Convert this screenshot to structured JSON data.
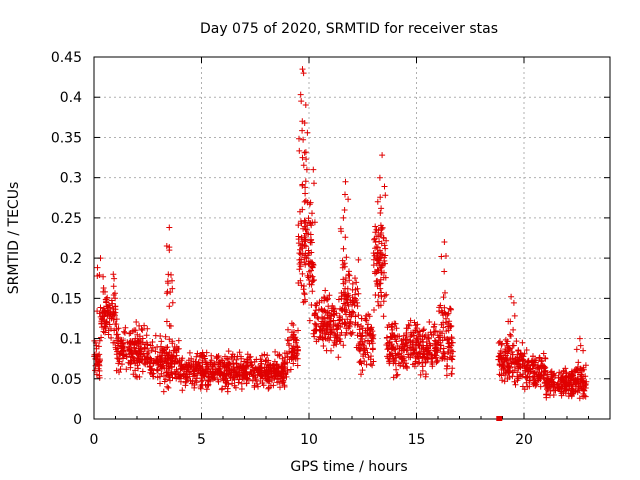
{
  "chart_data": {
    "type": "scatter",
    "title": "Day 075 of 2020, SRMTID for receiver stas",
    "xlabel": "GPS time / hours",
    "ylabel": "SRMTID / TECUs",
    "xlim": [
      0,
      24
    ],
    "ylim": [
      0,
      0.45
    ],
    "x_ticks": [
      "0",
      "5",
      "10",
      "15",
      "20"
    ],
    "y_ticks": [
      "0",
      "0.05",
      "0.1",
      "0.15",
      "0.2",
      "0.25",
      "0.3",
      "0.35",
      "0.4",
      "0.45"
    ],
    "grid": true,
    "marker": "plus",
    "color": "#e00000",
    "gap_marker": {
      "x": 18.85,
      "y": 0.0
    },
    "series": [
      {
        "name": "SRMTID",
        "segments": [
          {
            "x0": 0.0,
            "x1": 0.3,
            "base": 0.075,
            "spread": 0.03
          },
          {
            "x0": 0.3,
            "x1": 1.0,
            "base": 0.13,
            "spread": 0.05
          },
          {
            "x0": 1.0,
            "x1": 2.5,
            "base": 0.085,
            "spread": 0.04
          },
          {
            "x0": 2.5,
            "x1": 4.0,
            "base": 0.07,
            "spread": 0.04
          },
          {
            "x0": 4.0,
            "x1": 9.0,
            "base": 0.06,
            "spread": 0.03
          },
          {
            "x0": 9.0,
            "x1": 9.5,
            "base": 0.09,
            "spread": 0.04
          },
          {
            "x0": 9.5,
            "x1": 10.2,
            "base": 0.2,
            "spread": 0.09
          },
          {
            "x0": 10.2,
            "x1": 11.5,
            "base": 0.12,
            "spread": 0.05
          },
          {
            "x0": 11.5,
            "x1": 12.3,
            "base": 0.14,
            "spread": 0.07
          },
          {
            "x0": 12.3,
            "x1": 13.0,
            "base": 0.1,
            "spread": 0.05
          },
          {
            "x0": 13.0,
            "x1": 13.6,
            "base": 0.19,
            "spread": 0.08
          },
          {
            "x0": 13.6,
            "x1": 16.0,
            "base": 0.09,
            "spread": 0.045
          },
          {
            "x0": 16.0,
            "x1": 16.7,
            "base": 0.1,
            "spread": 0.06
          },
          {
            "x0": 18.8,
            "x1": 20.0,
            "base": 0.07,
            "spread": 0.04
          },
          {
            "x0": 20.0,
            "x1": 21.0,
            "base": 0.06,
            "spread": 0.03
          },
          {
            "x0": 21.0,
            "x1": 22.9,
            "base": 0.045,
            "spread": 0.025
          }
        ],
        "peaks": [
          {
            "x": 0.3,
            "y": 0.2
          },
          {
            "x": 0.9,
            "y": 0.18
          },
          {
            "x": 3.5,
            "y": 0.238
          },
          {
            "x": 3.5,
            "y": 0.21
          },
          {
            "x": 9.7,
            "y": 0.435
          },
          {
            "x": 9.75,
            "y": 0.43
          },
          {
            "x": 9.8,
            "y": 0.368
          },
          {
            "x": 9.7,
            "y": 0.325
          },
          {
            "x": 9.9,
            "y": 0.31
          },
          {
            "x": 10.2,
            "y": 0.31
          },
          {
            "x": 11.7,
            "y": 0.295
          },
          {
            "x": 11.6,
            "y": 0.25
          },
          {
            "x": 13.4,
            "y": 0.328
          },
          {
            "x": 13.3,
            "y": 0.3
          },
          {
            "x": 13.2,
            "y": 0.27
          },
          {
            "x": 16.3,
            "y": 0.22
          },
          {
            "x": 19.4,
            "y": 0.152
          },
          {
            "x": 22.6,
            "y": 0.1
          }
        ]
      }
    ]
  }
}
